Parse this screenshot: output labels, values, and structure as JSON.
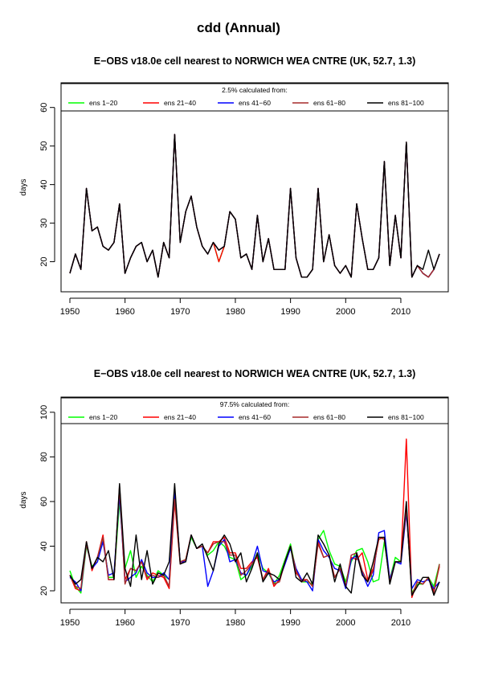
{
  "page_title": "cdd (Annual)",
  "chart_data": [
    {
      "type": "line",
      "title": "E−OBS v18.0e cell nearest to NORWICH WEA CNTRE (UK, 52.7, 1.3)",
      "legend_title": "2.5% calculated from:",
      "xlabel": "",
      "ylabel": "days",
      "xlim": [
        1948.4,
        2018.6
      ],
      "ylim": [
        12.2,
        66.4
      ],
      "xticks": [
        1950,
        1960,
        1970,
        1980,
        1990,
        2000,
        2010
      ],
      "yticks": [
        20,
        30,
        40,
        50,
        60
      ],
      "legend_position": "top",
      "x": [
        1950,
        1951,
        1952,
        1953,
        1954,
        1955,
        1956,
        1957,
        1958,
        1959,
        1960,
        1961,
        1962,
        1963,
        1964,
        1965,
        1966,
        1967,
        1968,
        1969,
        1970,
        1971,
        1972,
        1973,
        1974,
        1975,
        1976,
        1977,
        1978,
        1979,
        1980,
        1981,
        1982,
        1983,
        1984,
        1985,
        1986,
        1987,
        1988,
        1989,
        1990,
        1991,
        1992,
        1993,
        1994,
        1995,
        1996,
        1997,
        1998,
        1999,
        2000,
        2001,
        2002,
        2003,
        2004,
        2005,
        2006,
        2007,
        2008,
        2009,
        2010,
        2011,
        2012,
        2013,
        2014,
        2015,
        2016,
        2017
      ],
      "series": [
        {
          "name": "ens 1−20",
          "color": "#00ff00",
          "values": [
            17,
            22,
            18,
            39,
            28,
            29,
            24,
            23,
            25,
            35,
            17,
            21,
            24,
            25,
            20,
            23,
            16,
            25,
            21,
            53,
            25,
            33,
            37,
            29,
            24,
            22,
            25,
            20,
            24,
            33,
            31,
            21,
            22,
            18,
            32,
            20,
            26,
            18,
            18,
            18,
            39,
            21,
            16,
            16,
            18,
            39,
            20,
            27,
            19,
            17,
            19,
            16,
            35,
            26,
            18,
            18,
            21,
            46,
            19,
            32,
            21,
            51,
            16,
            19,
            17,
            16,
            18,
            22
          ]
        },
        {
          "name": "ens 21−40",
          "color": "#ff0000",
          "values": [
            17,
            22,
            18,
            39,
            28,
            29,
            24,
            23,
            25,
            35,
            17,
            21,
            24,
            25,
            20,
            23,
            16,
            25,
            21,
            53,
            25,
            33,
            37,
            29,
            24,
            22,
            25,
            20,
            24,
            33,
            31,
            21,
            22,
            18,
            32,
            20,
            26,
            18,
            18,
            18,
            39,
            21,
            16,
            16,
            18,
            39,
            20,
            27,
            19,
            17,
            19,
            16,
            35,
            26,
            18,
            18,
            21,
            46,
            19,
            32,
            21,
            51,
            16,
            19,
            17,
            16,
            18,
            22
          ]
        },
        {
          "name": "ens 41−60",
          "color": "#0000ff",
          "values": [
            17,
            22,
            18,
            39,
            28,
            29,
            24,
            23,
            25,
            35,
            17,
            21,
            24,
            25,
            20,
            23,
            16,
            25,
            21,
            53,
            25,
            33,
            37,
            29,
            24,
            22,
            25,
            23,
            24,
            33,
            31,
            21,
            22,
            18,
            32,
            20,
            26,
            18,
            18,
            18,
            39,
            21,
            16,
            16,
            18,
            39,
            20,
            27,
            19,
            17,
            19,
            16,
            35,
            26,
            18,
            18,
            21,
            46,
            19,
            32,
            21,
            51,
            16,
            19,
            17,
            16,
            18,
            22
          ]
        },
        {
          "name": "ens 61−80",
          "color": "#a52a2a",
          "values": [
            17,
            22,
            18,
            39,
            28,
            29,
            24,
            23,
            25,
            35,
            17,
            21,
            24,
            25,
            20,
            23,
            16,
            25,
            21,
            53,
            25,
            33,
            37,
            29,
            24,
            22,
            25,
            23,
            24,
            33,
            31,
            21,
            22,
            18,
            32,
            20,
            26,
            18,
            18,
            18,
            39,
            21,
            16,
            16,
            18,
            39,
            20,
            27,
            19,
            17,
            19,
            16,
            35,
            26,
            18,
            18,
            21,
            46,
            19,
            32,
            21,
            51,
            16,
            19,
            17,
            16,
            18,
            22
          ]
        },
        {
          "name": "ens 81−100",
          "color": "#000000",
          "values": [
            17,
            22,
            18,
            39,
            28,
            29,
            24,
            23,
            25,
            35,
            17,
            21,
            24,
            25,
            20,
            23,
            16,
            25,
            21,
            53,
            25,
            33,
            37,
            29,
            24,
            22,
            25,
            23,
            24,
            33,
            31,
            21,
            22,
            18,
            32,
            20,
            26,
            18,
            18,
            18,
            39,
            21,
            16,
            16,
            18,
            39,
            20,
            27,
            19,
            17,
            19,
            16,
            35,
            26,
            18,
            18,
            21,
            46,
            19,
            32,
            21,
            51,
            16,
            19,
            18,
            23,
            18,
            22
          ]
        }
      ]
    },
    {
      "type": "line",
      "title": "E−OBS v18.0e cell nearest to NORWICH WEA CNTRE (UK, 52.7, 1.3)",
      "legend_title": "97.5% calculated from:",
      "xlabel": "",
      "ylabel": "days",
      "xlim": [
        1948.4,
        2018.6
      ],
      "ylim": [
        14.6,
        106.8
      ],
      "xticks": [
        1950,
        1960,
        1970,
        1980,
        1990,
        2000,
        2010
      ],
      "yticks": [
        20,
        40,
        60,
        80,
        100
      ],
      "legend_position": "top",
      "x": [
        1950,
        1951,
        1952,
        1953,
        1954,
        1955,
        1956,
        1957,
        1958,
        1959,
        1960,
        1961,
        1962,
        1963,
        1964,
        1965,
        1966,
        1967,
        1968,
        1969,
        1970,
        1971,
        1972,
        1973,
        1974,
        1975,
        1976,
        1977,
        1978,
        1979,
        1980,
        1981,
        1982,
        1983,
        1984,
        1985,
        1986,
        1987,
        1988,
        1989,
        1990,
        1991,
        1992,
        1993,
        1994,
        1995,
        1996,
        1997,
        1998,
        1999,
        2000,
        2001,
        2002,
        2003,
        2004,
        2005,
        2006,
        2007,
        2008,
        2009,
        2010,
        2011,
        2012,
        2013,
        2014,
        2015,
        2016,
        2017
      ],
      "series": [
        {
          "name": "ens 1−20",
          "color": "#00ff00",
          "values": [
            29,
            22,
            19,
            40,
            31,
            33,
            44,
            26,
            26,
            60,
            30,
            38,
            26,
            31,
            27,
            24,
            29,
            27,
            25,
            63,
            33,
            34,
            44,
            39,
            40,
            36,
            38,
            42,
            40,
            35,
            34,
            25,
            27,
            31,
            37,
            30,
            28,
            23,
            27,
            34,
            41,
            29,
            24,
            24,
            23,
            43,
            47,
            38,
            32,
            31,
            24,
            33,
            38,
            39,
            33,
            24,
            25,
            42,
            25,
            35,
            33,
            56,
            19,
            23,
            23,
            26,
            22,
            32
          ]
        },
        {
          "name": "ens 21−40",
          "color": "#ff0000",
          "values": [
            27,
            21,
            20,
            42,
            29,
            35,
            45,
            25,
            25,
            67,
            25,
            30,
            29,
            33,
            25,
            28,
            27,
            26,
            21,
            60,
            32,
            34,
            45,
            39,
            40,
            37,
            42,
            42,
            44,
            37,
            37,
            30,
            30,
            33,
            35,
            25,
            30,
            22,
            25,
            33,
            40,
            28,
            25,
            25,
            22,
            42,
            35,
            36,
            26,
            30,
            22,
            35,
            34,
            37,
            25,
            30,
            43,
            44,
            25,
            33,
            33,
            88,
            17,
            24,
            23,
            26,
            20,
            31
          ]
        },
        {
          "name": "ens 41−60",
          "color": "#0000ff",
          "values": [
            26,
            24,
            20,
            41,
            30,
            33,
            42,
            27,
            28,
            63,
            24,
            26,
            28,
            34,
            28,
            26,
            26,
            28,
            25,
            65,
            33,
            33,
            45,
            39,
            40,
            22,
            29,
            40,
            43,
            33,
            34,
            28,
            27,
            32,
            40,
            29,
            28,
            24,
            25,
            32,
            39,
            30,
            25,
            24,
            20,
            43,
            38,
            35,
            30,
            29,
            21,
            34,
            36,
            28,
            22,
            27,
            46,
            47,
            25,
            33,
            32,
            55,
            21,
            25,
            24,
            25,
            21,
            24
          ]
        },
        {
          "name": "ens 61−80",
          "color": "#a52a2a",
          "values": [
            27,
            22,
            21,
            41,
            30,
            35,
            44,
            25,
            25,
            66,
            23,
            30,
            29,
            33,
            26,
            27,
            26,
            27,
            22,
            61,
            33,
            34,
            45,
            39,
            40,
            37,
            41,
            42,
            42,
            36,
            36,
            27,
            29,
            32,
            36,
            25,
            29,
            23,
            24,
            33,
            40,
            29,
            24,
            25,
            22,
            41,
            35,
            36,
            26,
            30,
            22,
            36,
            37,
            29,
            24,
            29,
            44,
            43,
            24,
            33,
            33,
            57,
            18,
            24,
            23,
            26,
            19,
            32
          ]
        },
        {
          "name": "ens 81−100",
          "color": "#000000",
          "values": [
            27,
            23,
            25,
            42,
            30,
            35,
            33,
            38,
            25,
            68,
            30,
            22,
            45,
            25,
            38,
            23,
            28,
            27,
            33,
            68,
            32,
            33,
            45,
            39,
            41,
            35,
            29,
            41,
            45,
            41,
            33,
            37,
            24,
            30,
            37,
            24,
            28,
            27,
            25,
            33,
            40,
            26,
            24,
            28,
            23,
            45,
            41,
            36,
            24,
            32,
            22,
            19,
            37,
            27,
            24,
            33,
            44,
            44,
            23,
            33,
            33,
            60,
            18,
            22,
            26,
            26,
            18,
            24
          ]
        }
      ]
    }
  ]
}
